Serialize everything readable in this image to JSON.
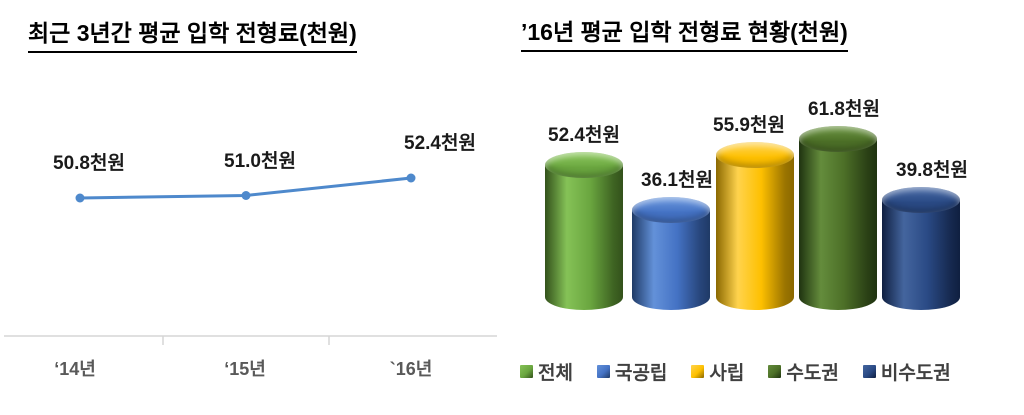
{
  "chart_data": [
    {
      "type": "line",
      "title": "최근 3년간 평균 입학 전형료(천원)",
      "categories": [
        "‘14년",
        "‘15년",
        "`16년"
      ],
      "values": [
        50.8,
        51.0,
        52.4
      ],
      "point_labels": [
        "50.8천원",
        "51.0천원",
        "52.4천원"
      ],
      "unit": "천원",
      "line_color": "#4e89cc",
      "marker_color": "#4e89cc",
      "axis_color": "#d6d6d6",
      "ylim": [
        50.4,
        52.8
      ],
      "grid": false,
      "legend_position": "none"
    },
    {
      "type": "bar",
      "style": "3d-cylinder",
      "title": "’16년 평균 입학 전형료 현황(천원)",
      "categories": [
        "전체",
        "국공립",
        "사립",
        "수도권",
        "비수도권"
      ],
      "values": [
        52.4,
        36.1,
        55.9,
        61.8,
        39.8
      ],
      "point_labels": [
        "52.4천원",
        "36.1천원",
        "55.9천원",
        "61.8천원",
        "39.8천원"
      ],
      "unit": "천원",
      "ylim": [
        0,
        70
      ],
      "grid": false,
      "legend_position": "bottom",
      "series_colors": [
        {
          "base": "#6aa63f",
          "light": "#85c257",
          "dark": "#33511b",
          "edge": "#3e6322",
          "cap_light": "#8fcb60"
        },
        {
          "base": "#4472c4",
          "light": "#6391d9",
          "dark": "#1f3a66",
          "edge": "#27457a",
          "cap_light": "#6d9ae0"
        },
        {
          "base": "#fec000",
          "light": "#ffd34d",
          "dark": "#8a6800",
          "edge": "#9c7500",
          "cap_light": "#ffd65c"
        },
        {
          "base": "#4c6f27",
          "light": "#648c3c",
          "dark": "#1f3310",
          "edge": "#2a4015",
          "cap_light": "#6d9743"
        },
        {
          "base": "#2a4a85",
          "light": "#44659e",
          "dark": "#0f1f40",
          "edge": "#16294f",
          "cap_light": "#4a6ca8"
        }
      ]
    }
  ]
}
